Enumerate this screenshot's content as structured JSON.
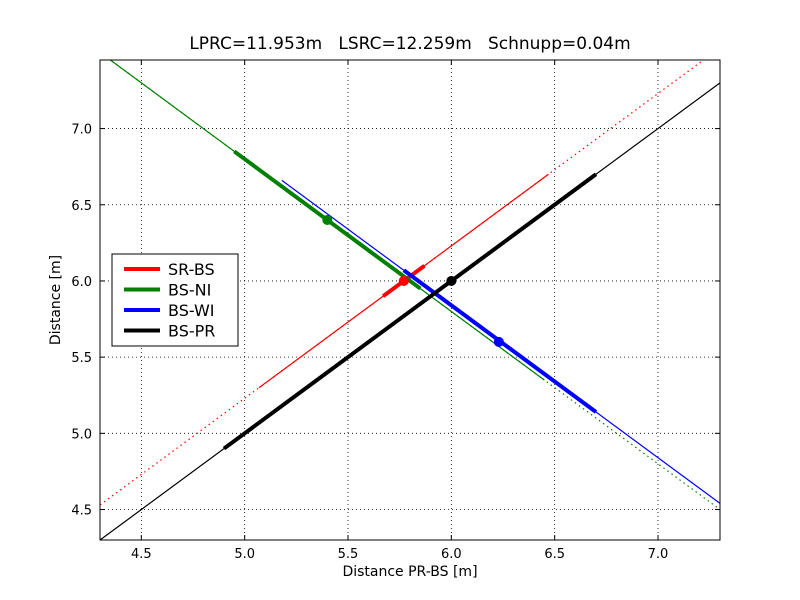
{
  "chart_data": {
    "type": "line",
    "title": "LPRC=11.953m   LSRC=12.259m   Schnupp=0.04m",
    "xlabel": "Distance PR-BS [m]",
    "ylabel": "Distance [m]",
    "xlim": [
      4.3,
      7.3
    ],
    "ylim": [
      4.3,
      7.45
    ],
    "xticks": [
      4.5,
      5.0,
      5.5,
      6.0,
      6.5,
      7.0
    ],
    "xtick_labels": [
      "4.5",
      "5.0",
      "5.5",
      "6.0",
      "6.5",
      "7.0"
    ],
    "yticks": [
      4.5,
      5.0,
      5.5,
      6.0,
      6.5,
      7.0
    ],
    "ytick_labels": [
      "4.5",
      "5.0",
      "5.5",
      "6.0",
      "6.5",
      "7.0"
    ],
    "grid": true,
    "legend_position": "center-left",
    "legend": [
      {
        "name": "SR-BS",
        "color": "#ff0000"
      },
      {
        "name": "BS-NI",
        "color": "#008000"
      },
      {
        "name": "BS-WI",
        "color": "#0000ff"
      },
      {
        "name": "BS-PR",
        "color": "#000000"
      }
    ],
    "series": [
      {
        "color": "#ff0000",
        "lines": [
          {
            "style": "dotted",
            "x": [
              4.3,
              7.3
            ],
            "y": [
              4.53,
              7.53
            ]
          },
          {
            "style": "thin",
            "x": [
              5.07,
              6.47
            ],
            "y": [
              5.3,
              6.7
            ]
          },
          {
            "style": "thick",
            "x": [
              5.67,
              5.87
            ],
            "y": [
              5.9,
              6.1
            ]
          }
        ],
        "points": [
          {
            "x": 5.77,
            "y": 6.0
          }
        ]
      },
      {
        "color": "#008000",
        "lines": [
          {
            "style": "dotted",
            "x": [
              4.3,
              7.3
            ],
            "y": [
              7.5,
              4.5
            ]
          },
          {
            "style": "thin",
            "x": [
              4.35,
              6.45
            ],
            "y": [
              7.45,
              5.35
            ]
          },
          {
            "style": "thick",
            "x": [
              4.95,
              5.85
            ],
            "y": [
              6.85,
              5.95
            ]
          }
        ],
        "points": [
          {
            "x": 5.4,
            "y": 6.4
          }
        ]
      },
      {
        "color": "#0000ff",
        "lines": [
          {
            "style": "thin",
            "x": [
              5.18,
              7.3
            ],
            "y": [
              6.66,
              4.54
            ]
          },
          {
            "style": "thick",
            "x": [
              5.77,
              6.7
            ],
            "y": [
              6.07,
              5.14
            ]
          }
        ],
        "points": [
          {
            "x": 6.23,
            "y": 5.6
          }
        ]
      },
      {
        "color": "#000000",
        "lines": [
          {
            "style": "thin",
            "x": [
              4.3,
              7.3
            ],
            "y": [
              4.3,
              7.3
            ]
          },
          {
            "style": "thick",
            "x": [
              4.9,
              6.7
            ],
            "y": [
              4.9,
              6.7
            ]
          }
        ],
        "points": [
          {
            "x": 6.0,
            "y": 6.0
          }
        ]
      }
    ]
  }
}
